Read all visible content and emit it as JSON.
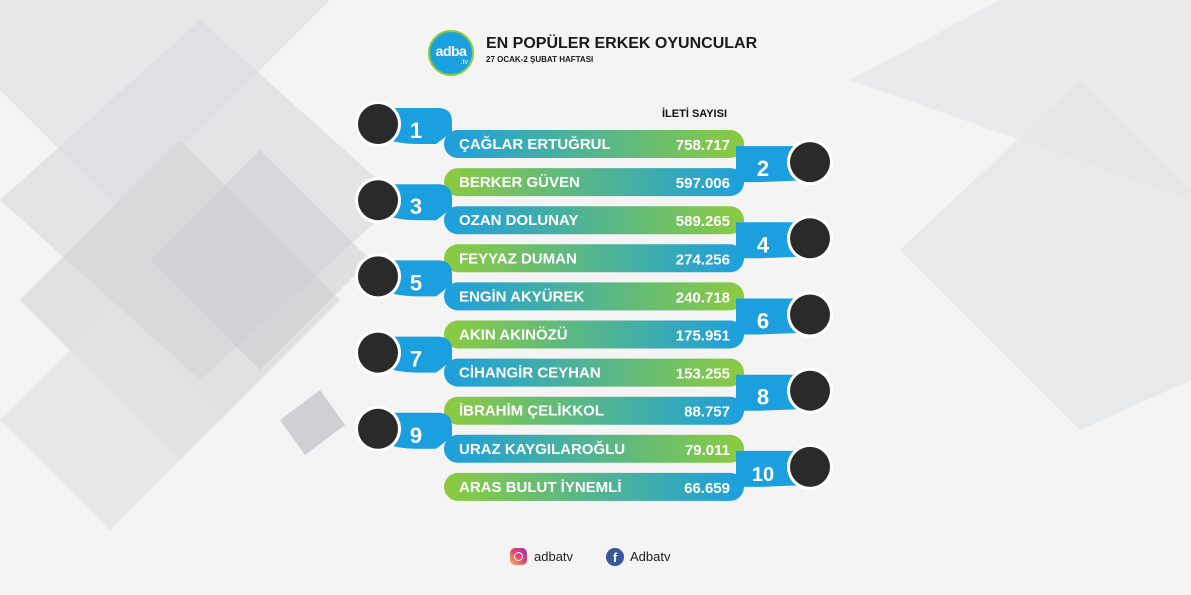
{
  "logo": {
    "line1": "adba",
    "line2": ".tv"
  },
  "title": "EN POPÜLER ERKEK OYUNCULAR",
  "subtitle": "27 OCAK-2 ŞUBAT HAFTASI",
  "column_header": "İLETİ SAYISI",
  "chart_data": {
    "type": "bar",
    "title": "EN POPÜLER ERKEK OYUNCULAR",
    "subtitle": "27 OCAK-2 ŞUBAT HAFTASI",
    "value_label": "İLETİ SAYISI",
    "ranks": [
      "1",
      "2",
      "3",
      "4",
      "5",
      "6",
      "7",
      "8",
      "9",
      "10"
    ],
    "categories": [
      "ÇAĞLAR ERTUĞRUL",
      "BERKER GÜVEN",
      "OZAN DOLUNAY",
      "FEYYAZ DUMAN",
      "ENGİN AKYÜREK",
      "AKIN AKINÖZÜ",
      "CİHANGİR CEYHAN",
      "İBRAHİM ÇELİKKOL",
      "URAZ KAYGILAROĞLU",
      "ARAS BULUT İYNEMLİ"
    ],
    "value_labels": [
      "758.717",
      "597.006",
      "589.265",
      "274.256",
      "240.718",
      "175.951",
      "153.255",
      "88.757",
      "79.011",
      "66.659"
    ],
    "values": [
      758717,
      597006,
      589265,
      274256,
      240718,
      175951,
      153255,
      88757,
      79011,
      66659
    ],
    "colors": {
      "blue": "#1c9fde",
      "green": "#8ccb3f",
      "photo": "#2a2a2a"
    }
  },
  "footer": {
    "instagram": "adbatv",
    "facebook": "Adbatv",
    "icons": [
      "instagram-icon",
      "facebook-icon"
    ]
  }
}
